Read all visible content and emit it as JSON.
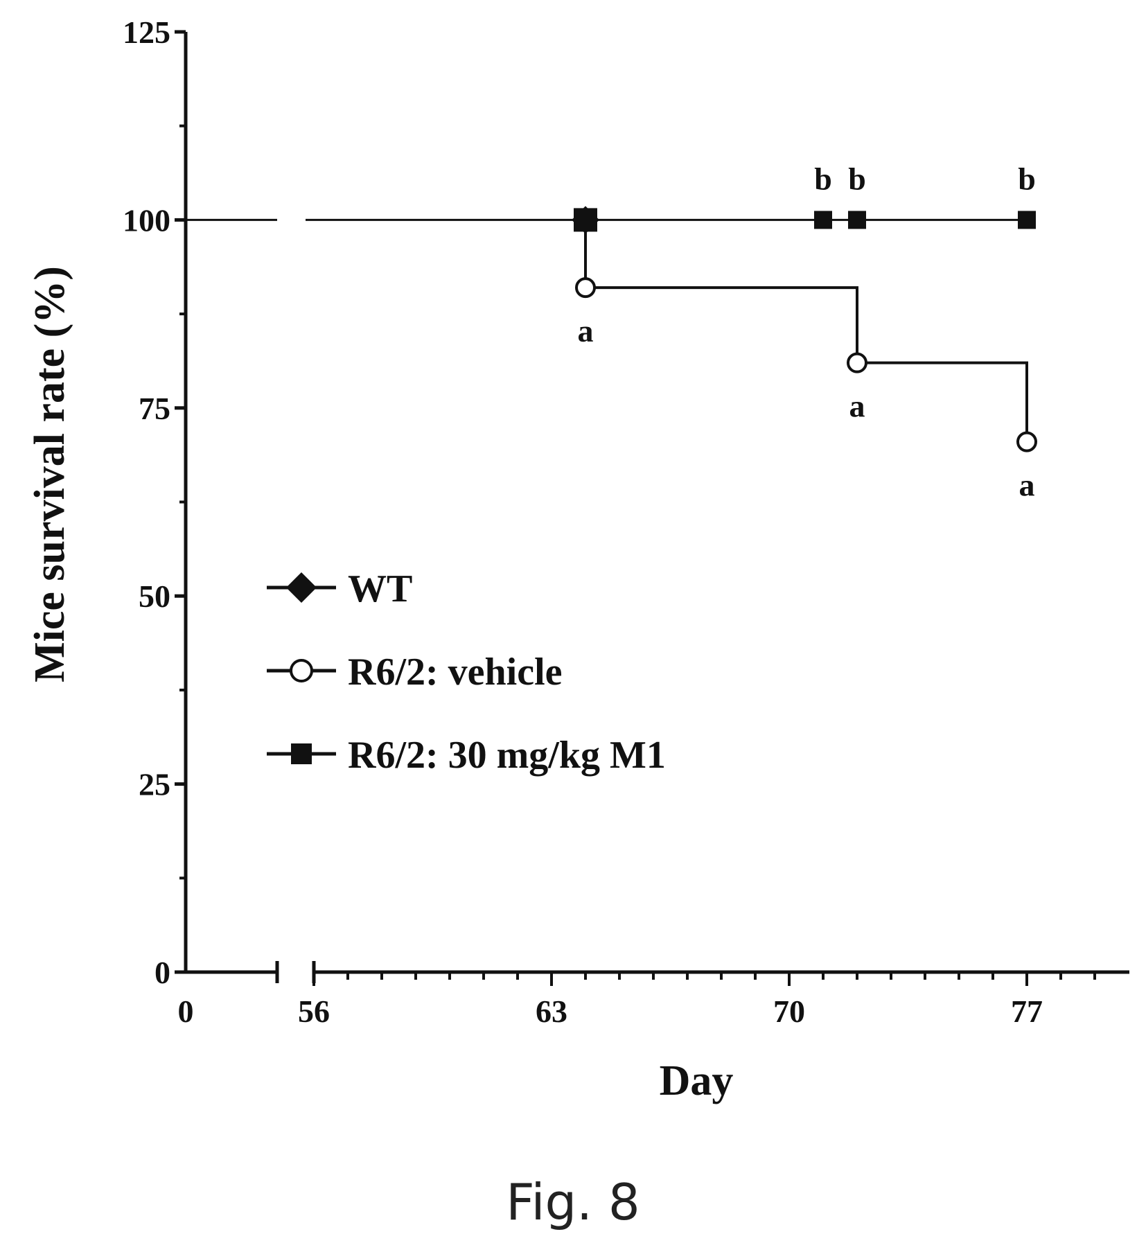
{
  "chart_data": {
    "type": "line",
    "step": true,
    "ylabel": "Mice survival rate (%)",
    "xlabel": "Day",
    "ylim": [
      0,
      125
    ],
    "yticks": [
      0,
      25,
      50,
      75,
      100,
      125
    ],
    "x_axis_break": true,
    "xticks_left": [
      0
    ],
    "xticks_right": [
      56,
      63,
      70,
      77
    ],
    "xlim_right": [
      56,
      79
    ],
    "grid": false,
    "legend_position": "center-left",
    "series": [
      {
        "name": "WT",
        "marker": "filled-diamond",
        "points": [
          {
            "x": 64,
            "y": 100
          }
        ],
        "line_from_zero": true
      },
      {
        "name": "R6/2: vehicle",
        "marker": "open-circle",
        "points": [
          {
            "x": 64,
            "y": 91
          },
          {
            "x": 72,
            "y": 81
          },
          {
            "x": 77,
            "y": 70.5
          }
        ],
        "start": {
          "x": 64,
          "y": 100
        },
        "labels": [
          "a",
          "a",
          "a"
        ]
      },
      {
        "name": "R6/2: 30 mg/kg M1",
        "marker": "filled-square",
        "points": [
          {
            "x": 64,
            "y": 100
          },
          {
            "x": 71,
            "y": 100
          },
          {
            "x": 72,
            "y": 100
          },
          {
            "x": 77,
            "y": 100
          }
        ],
        "labels": [
          "",
          "b",
          "b",
          "b"
        ]
      }
    ]
  },
  "caption": "Fig. 8"
}
